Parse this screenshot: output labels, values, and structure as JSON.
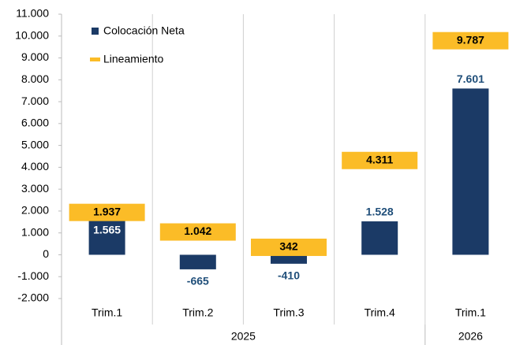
{
  "chart_data": {
    "type": "bar",
    "categories": [
      "Trim.1",
      "Trim.2",
      "Trim.3",
      "Trim.4",
      "Trim.1"
    ],
    "groups": [
      {
        "label": "2025",
        "span": 4
      },
      {
        "label": "2026",
        "span": 1
      }
    ],
    "series": [
      {
        "name": "Colocación Neta",
        "color": "#1b3a66",
        "values": [
          1565,
          -665,
          -410,
          1528,
          7601
        ],
        "value_labels": [
          "1.565",
          "-665",
          "-410",
          "1.528",
          "7.601"
        ]
      },
      {
        "name": "Lineamiento",
        "color": "#fbbc27",
        "marker": "band",
        "values": [
          1937,
          1042,
          342,
          4311,
          9787
        ],
        "value_labels": [
          "1.937",
          "1.042",
          "342",
          "4.311",
          "9.787"
        ]
      }
    ],
    "ylim": [
      -2000,
      11000
    ],
    "yticks": [
      {
        "value": -2000,
        "label": "-2.000"
      },
      {
        "value": -1000,
        "label": "-1.000"
      },
      0,
      {
        "value": 1000,
        "label": "1.000"
      },
      {
        "value": 2000,
        "label": "2.000"
      },
      {
        "value": 3000,
        "label": "3.000"
      },
      {
        "value": 4000,
        "label": "4.000"
      },
      {
        "value": 5000,
        "label": "5.000"
      },
      {
        "value": 6000,
        "label": "6.000"
      },
      {
        "value": 7000,
        "label": "7.000"
      },
      {
        "value": 8000,
        "label": "8.000"
      },
      {
        "value": 9000,
        "label": "9.000"
      },
      {
        "value": 10000,
        "label": "10.000"
      },
      {
        "value": 11000,
        "label": "11.000"
      }
    ],
    "legend": "upper left",
    "grid": false
  }
}
